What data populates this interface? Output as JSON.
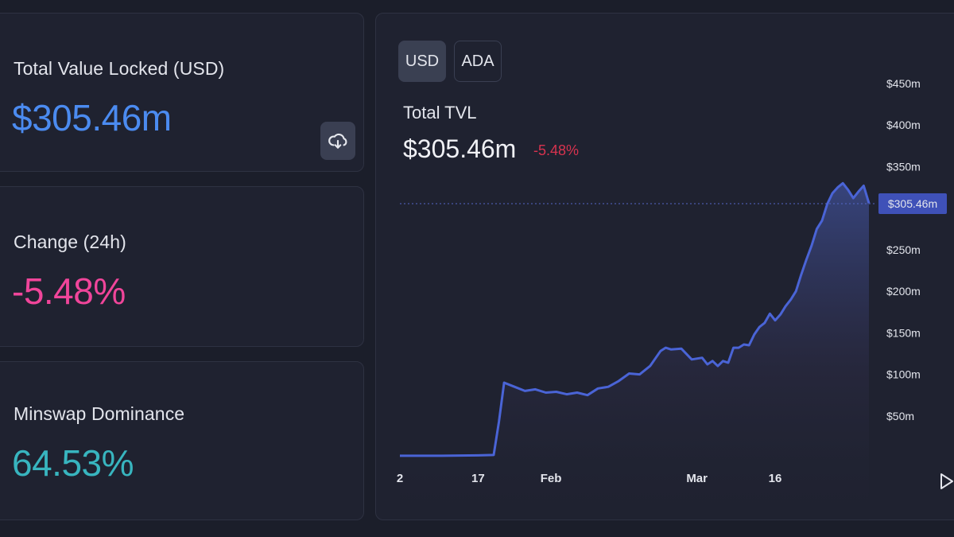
{
  "stats": {
    "tvl": {
      "label": "Total Value Locked (USD)",
      "value": "$305.46m"
    },
    "change": {
      "label": "Change (24h)",
      "value": "-5.48%"
    },
    "dominance": {
      "label": "Minswap Dominance",
      "value": "64.53%"
    }
  },
  "icons": {
    "download": "cloud-download-icon",
    "play": "play-icon"
  },
  "colors": {
    "tvl_value": "#4b8bf0",
    "change_value": "#f0459a",
    "dominance_value": "#38b5bf",
    "line": "#4a64d6",
    "negative_change": "#d7334f"
  },
  "chart": {
    "toggle": {
      "usd": "USD",
      "ada": "ADA",
      "selected": "USD"
    },
    "title": "Total TVL",
    "value": "$305.46m",
    "change": "-5.48%"
  },
  "chart_data": {
    "type": "area",
    "title": "Total TVL",
    "y_axis_position": "right",
    "ylim": [
      0,
      450
    ],
    "y_ticks": [
      {
        "value": 50,
        "label": "$50m"
      },
      {
        "value": 100,
        "label": "$100m"
      },
      {
        "value": 150,
        "label": "$150m"
      },
      {
        "value": 200,
        "label": "$200m"
      },
      {
        "value": 250,
        "label": "$250m"
      },
      {
        "value": 350,
        "label": "$350m"
      },
      {
        "value": 400,
        "label": "$400m"
      },
      {
        "value": 450,
        "label": "$450m"
      }
    ],
    "x_ticks": [
      {
        "day": 2,
        "label": "2"
      },
      {
        "day": 17,
        "label": "17"
      },
      {
        "day": 31,
        "label": "Feb"
      },
      {
        "day": 59,
        "label": "Mar"
      },
      {
        "day": 74,
        "label": "16"
      }
    ],
    "current_value": 305.46,
    "current_label": "$305.46m",
    "series": [
      {
        "values": [
          [
            2,
            2
          ],
          [
            10,
            2
          ],
          [
            17,
            2.5
          ],
          [
            20,
            3
          ],
          [
            21,
            43
          ],
          [
            22,
            90
          ],
          [
            24,
            85
          ],
          [
            26,
            80
          ],
          [
            28,
            82
          ],
          [
            30,
            78
          ],
          [
            32,
            79
          ],
          [
            34,
            76
          ],
          [
            36,
            78
          ],
          [
            38,
            75
          ],
          [
            40,
            83
          ],
          [
            42,
            85
          ],
          [
            44,
            92
          ],
          [
            46,
            101
          ],
          [
            48,
            100
          ],
          [
            50,
            110
          ],
          [
            52,
            128
          ],
          [
            53,
            132
          ],
          [
            54,
            130
          ],
          [
            56,
            131
          ],
          [
            58,
            118
          ],
          [
            60,
            120
          ],
          [
            61,
            112
          ],
          [
            62,
            116
          ],
          [
            63,
            110
          ],
          [
            64,
            116
          ],
          [
            65,
            114
          ],
          [
            66,
            132
          ],
          [
            67,
            132
          ],
          [
            68,
            136
          ],
          [
            69,
            135
          ],
          [
            70,
            148
          ],
          [
            71,
            157
          ],
          [
            72,
            162
          ],
          [
            73,
            173
          ],
          [
            74,
            165
          ],
          [
            75,
            172
          ],
          [
            76,
            182
          ],
          [
            77,
            190
          ],
          [
            78,
            200
          ],
          [
            79,
            220
          ],
          [
            80,
            238
          ],
          [
            81,
            255
          ],
          [
            82,
            275
          ],
          [
            83,
            285
          ],
          [
            84,
            305
          ],
          [
            85,
            318
          ],
          [
            86,
            325
          ],
          [
            87,
            330
          ],
          [
            88,
            322
          ],
          [
            89,
            312
          ],
          [
            90,
            320
          ],
          [
            91,
            327
          ],
          [
            92,
            306
          ]
        ]
      }
    ]
  }
}
